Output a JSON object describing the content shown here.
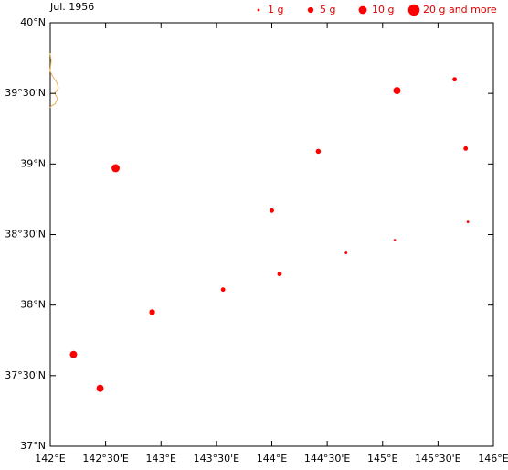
{
  "chart_data": {
    "type": "bubble",
    "title": "Jul. 1956",
    "color": "#ff0000",
    "xlim": [
      142,
      146
    ],
    "ylim": [
      37,
      40
    ],
    "xticks": [
      {
        "value": 142,
        "label": "142°E"
      },
      {
        "value": 142.5,
        "label": "142°30'E"
      },
      {
        "value": 143,
        "label": "143°E"
      },
      {
        "value": 143.5,
        "label": "143°30'E"
      },
      {
        "value": 144,
        "label": "144°E"
      },
      {
        "value": 144.5,
        "label": "144°30'E"
      },
      {
        "value": 145,
        "label": "145°E"
      },
      {
        "value": 145.5,
        "label": "145°30'E"
      },
      {
        "value": 146,
        "label": "146°E"
      }
    ],
    "yticks": [
      {
        "value": 37,
        "label": "37°N"
      },
      {
        "value": 37.5,
        "label": "37°30'N"
      },
      {
        "value": 38,
        "label": "38°N"
      },
      {
        "value": 38.5,
        "label": "38°30'N"
      },
      {
        "value": 39,
        "label": "39°N"
      },
      {
        "value": 39.5,
        "label": "39°30'N"
      },
      {
        "value": 40,
        "label": "40°N"
      }
    ],
    "legend": [
      {
        "value": 1,
        "label": "1 g"
      },
      {
        "value": 5,
        "label": "5 g"
      },
      {
        "value": 10,
        "label": "10 g"
      },
      {
        "value": 20,
        "label": "20 g and more"
      }
    ],
    "x": [
      145.13,
      145.65,
      142.59,
      144.42,
      145.75,
      144.0,
      145.77,
      144.67,
      145.11,
      144.07,
      143.56,
      142.92,
      142.21,
      142.45
    ],
    "y": [
      39.52,
      39.6,
      38.97,
      39.09,
      39.11,
      38.67,
      38.59,
      38.37,
      38.46,
      38.22,
      38.11,
      37.95,
      37.65,
      37.41
    ],
    "sizes": [
      8,
      3,
      10,
      4,
      3,
      3,
      1,
      1,
      1,
      3,
      3,
      5,
      8,
      8
    ]
  }
}
